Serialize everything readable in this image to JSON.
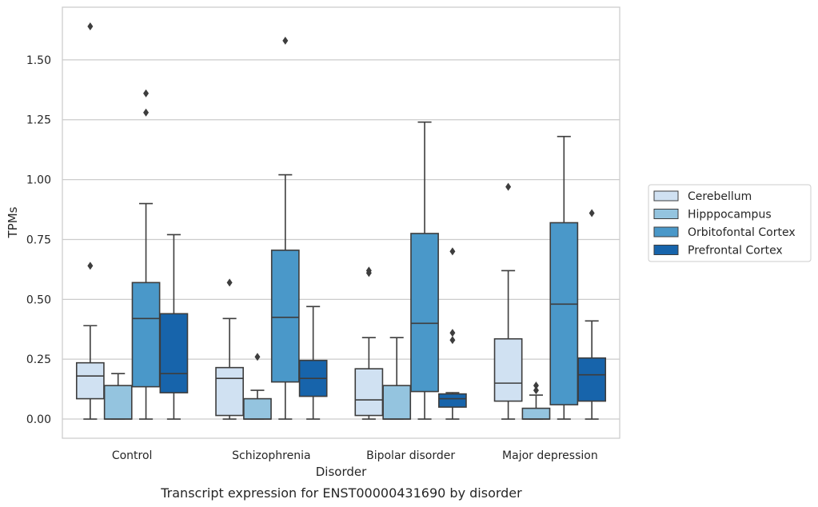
{
  "chart_data": {
    "type": "boxplot",
    "caption": "Transcript expression for ENST00000431690 by disorder",
    "xlabel": "Disorder",
    "ylabel": "TPMs",
    "ylim": [
      -0.08,
      1.72
    ],
    "yticks": [
      0.0,
      0.25,
      0.5,
      0.75,
      1.0,
      1.25,
      1.5
    ],
    "ytick_labels": [
      "0.00",
      "0.25",
      "0.50",
      "0.75",
      "1.00",
      "1.25",
      "1.50"
    ],
    "grid": "horizontal",
    "legend_position": "right",
    "categories": [
      "Control",
      "Schizophrenia",
      "Bipolar disorder",
      "Major depression"
    ],
    "series": [
      {
        "name": "Cerebellum",
        "color": "#d0e1f2",
        "boxes": [
          {
            "whisker_low": 0.0,
            "q1": 0.085,
            "median": 0.18,
            "q3": 0.235,
            "whisker_high": 0.39,
            "outliers": [
              0.64,
              1.64
            ]
          },
          {
            "whisker_low": 0.0,
            "q1": 0.015,
            "median": 0.17,
            "q3": 0.215,
            "whisker_high": 0.42,
            "outliers": [
              0.57
            ]
          },
          {
            "whisker_low": 0.0,
            "q1": 0.015,
            "median": 0.08,
            "q3": 0.21,
            "whisker_high": 0.34,
            "outliers": [
              0.61,
              0.62
            ]
          },
          {
            "whisker_low": 0.0,
            "q1": 0.075,
            "median": 0.15,
            "q3": 0.335,
            "whisker_high": 0.62,
            "outliers": [
              0.97
            ]
          }
        ]
      },
      {
        "name": "Hipppocampus",
        "color": "#94c4df",
        "boxes": [
          {
            "whisker_low": 0.0,
            "q1": 0.0,
            "median": 0.0,
            "q3": 0.14,
            "whisker_high": 0.19,
            "outliers": []
          },
          {
            "whisker_low": 0.0,
            "q1": 0.0,
            "median": 0.0,
            "q3": 0.085,
            "whisker_high": 0.12,
            "outliers": [
              0.26
            ]
          },
          {
            "whisker_low": 0.0,
            "q1": 0.0,
            "median": 0.0,
            "q3": 0.14,
            "whisker_high": 0.34,
            "outliers": []
          },
          {
            "whisker_low": 0.0,
            "q1": 0.0,
            "median": 0.0,
            "q3": 0.045,
            "whisker_high": 0.1,
            "outliers": [
              0.12,
              0.14
            ]
          }
        ]
      },
      {
        "name": "Orbitofontal Cortex",
        "color": "#4a98c9",
        "boxes": [
          {
            "whisker_low": 0.0,
            "q1": 0.135,
            "median": 0.42,
            "q3": 0.57,
            "whisker_high": 0.9,
            "outliers": [
              1.28,
              1.36
            ]
          },
          {
            "whisker_low": 0.0,
            "q1": 0.155,
            "median": 0.425,
            "q3": 0.705,
            "whisker_high": 1.02,
            "outliers": [
              1.58
            ]
          },
          {
            "whisker_low": 0.0,
            "q1": 0.115,
            "median": 0.4,
            "q3": 0.775,
            "whisker_high": 1.24,
            "outliers": []
          },
          {
            "whisker_low": 0.0,
            "q1": 0.06,
            "median": 0.48,
            "q3": 0.82,
            "whisker_high": 1.18,
            "outliers": []
          }
        ]
      },
      {
        "name": "Prefrontal Cortex",
        "color": "#1764ab",
        "boxes": [
          {
            "whisker_low": 0.0,
            "q1": 0.11,
            "median": 0.19,
            "q3": 0.44,
            "whisker_high": 0.77,
            "outliers": []
          },
          {
            "whisker_low": 0.0,
            "q1": 0.095,
            "median": 0.17,
            "q3": 0.245,
            "whisker_high": 0.47,
            "outliers": []
          },
          {
            "whisker_low": 0.0,
            "q1": 0.05,
            "median": 0.085,
            "q3": 0.105,
            "whisker_high": 0.11,
            "outliers": [
              0.33,
              0.36,
              0.7
            ]
          },
          {
            "whisker_low": 0.0,
            "q1": 0.075,
            "median": 0.185,
            "q3": 0.255,
            "whisker_high": 0.41,
            "outliers": [
              0.86
            ]
          }
        ]
      }
    ]
  }
}
